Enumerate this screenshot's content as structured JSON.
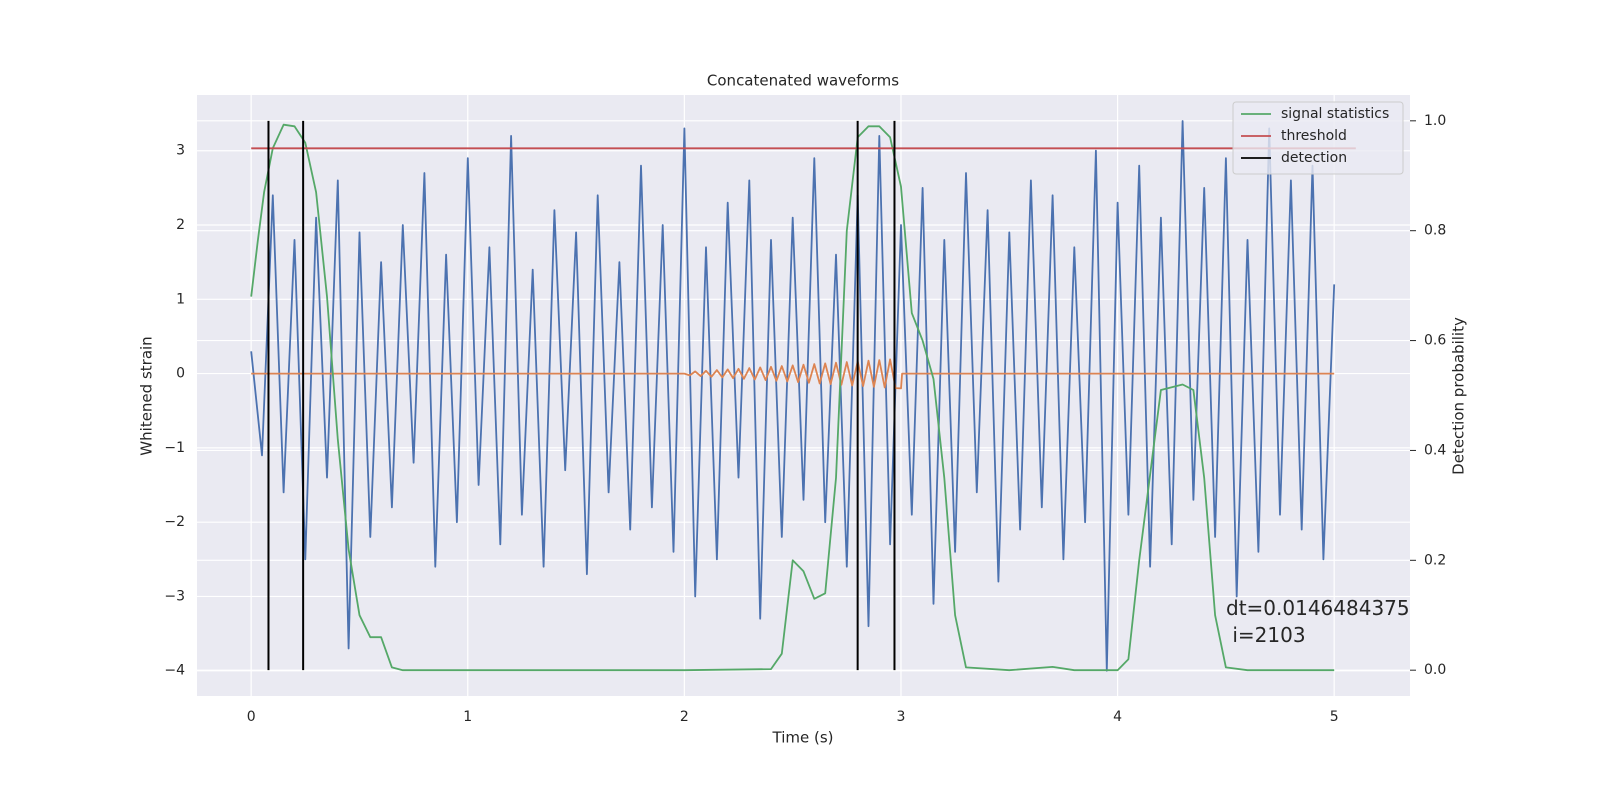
{
  "chart_data": {
    "type": "line",
    "title": "Concatenated waveforms",
    "x_label": "Time (s)",
    "y_label": "Whitened strain",
    "y2_label": "Detection probability",
    "annotation": [
      "dt=0.0146484375",
      " i=2103"
    ],
    "xlim": [
      -0.25,
      5.35
    ],
    "ylim": [
      -4.34,
      3.75
    ],
    "y2lim": [
      -0.047,
      1.047
    ],
    "xticks": [
      0,
      1,
      2,
      3,
      4,
      5
    ],
    "yticks": [
      {
        "value": -4,
        "label": "−4"
      },
      {
        "value": -3,
        "label": "−3"
      },
      {
        "value": -2,
        "label": "−2"
      },
      {
        "value": -1,
        "label": "−1"
      },
      0,
      1,
      2,
      3
    ],
    "y2ticks": [
      {
        "value": 0,
        "label": "0.0"
      },
      {
        "value": 0.2,
        "label": "0.2"
      },
      {
        "value": 0.4,
        "label": "0.4"
      },
      {
        "value": 0.6,
        "label": "0.6"
      },
      {
        "value": 0.8,
        "label": "0.8"
      },
      {
        "value": 1,
        "label": "1.0"
      }
    ],
    "grid": true,
    "legend": "upper right",
    "series": [
      {
        "color": "#4c72b0",
        "x": [
          0,
          0.05,
          0.1,
          0.15,
          0.2,
          0.25,
          0.3,
          0.35,
          0.4,
          0.45,
          0.5,
          0.55,
          0.6,
          0.65,
          0.7,
          0.75,
          0.8,
          0.85,
          0.9,
          0.95,
          1,
          1.05,
          1.1,
          1.15,
          1.2,
          1.25,
          1.3,
          1.35,
          1.4,
          1.45,
          1.5,
          1.55,
          1.6,
          1.65,
          1.7,
          1.75,
          1.8,
          1.85,
          1.9,
          1.95,
          2,
          2.05,
          2.1,
          2.15,
          2.2,
          2.25,
          2.3,
          2.35,
          2.4,
          2.45,
          2.5,
          2.55,
          2.6,
          2.65,
          2.7,
          2.75,
          2.8,
          2.85,
          2.9,
          2.95,
          3,
          3.05,
          3.1,
          3.15,
          3.2,
          3.25,
          3.3,
          3.35,
          3.4,
          3.45,
          3.5,
          3.55,
          3.6,
          3.65,
          3.7,
          3.75,
          3.8,
          3.85,
          3.9,
          3.95,
          4,
          4.05,
          4.1,
          4.15,
          4.2,
          4.25,
          4.3,
          4.35,
          4.4,
          4.45,
          4.5,
          4.55,
          4.6,
          4.65,
          4.7,
          4.75,
          4.8,
          4.85,
          4.9,
          4.95,
          5
        ],
        "values": [
          0.3,
          -1.1,
          2.4,
          -1.6,
          1.8,
          -2.5,
          2.1,
          -1.4,
          2.6,
          -3.7,
          1.9,
          -2.2,
          1.5,
          -1.8,
          2.0,
          -1.2,
          2.7,
          -2.6,
          1.6,
          -2.0,
          2.9,
          -1.5,
          1.7,
          -2.3,
          3.2,
          -1.9,
          1.4,
          -2.6,
          2.2,
          -1.3,
          1.9,
          -2.7,
          2.4,
          -1.6,
          1.5,
          -2.1,
          2.8,
          -1.8,
          2.0,
          -2.4,
          3.3,
          -3.0,
          1.7,
          -2.5,
          2.3,
          -1.4,
          2.6,
          -3.3,
          1.8,
          -2.2,
          2.1,
          -1.7,
          2.9,
          -2.0,
          1.6,
          -2.6,
          2.4,
          -3.4,
          3.2,
          -2.3,
          2.0,
          -1.9,
          2.5,
          -3.1,
          1.8,
          -2.4,
          2.7,
          -1.6,
          2.2,
          -2.8,
          1.9,
          -2.1,
          2.6,
          -1.8,
          2.4,
          -2.5,
          1.7,
          -2.0,
          3.0,
          -4.0,
          2.3,
          -1.9,
          2.8,
          -2.6,
          2.1,
          -2.3,
          3.4,
          -1.7,
          2.5,
          -2.2,
          2.9,
          -3.0,
          1.8,
          -2.4,
          3.3,
          -1.9,
          2.6,
          -2.1,
          2.8,
          -2.5,
          1.2
        ]
      },
      {
        "color": "#dd8452",
        "x": [
          0,
          2,
          2.025,
          2.05,
          2.075,
          2.1,
          2.125,
          2.15,
          2.175,
          2.2,
          2.225,
          2.25,
          2.275,
          2.3,
          2.325,
          2.35,
          2.375,
          2.4,
          2.425,
          2.45,
          2.475,
          2.5,
          2.525,
          2.55,
          2.575,
          2.6,
          2.625,
          2.65,
          2.675,
          2.7,
          2.725,
          2.75,
          2.775,
          2.8,
          2.825,
          2.85,
          2.875,
          2.9,
          2.925,
          2.95,
          2.975,
          3,
          3.005,
          5
        ],
        "values": [
          0,
          0,
          -0.025,
          0.03,
          -0.034,
          0.038,
          -0.043,
          0.047,
          -0.052,
          0.056,
          -0.061,
          0.065,
          -0.07,
          0.074,
          -0.079,
          0.083,
          -0.088,
          0.092,
          -0.097,
          0.101,
          -0.106,
          0.11,
          -0.115,
          0.119,
          -0.124,
          0.128,
          -0.133,
          0.137,
          -0.142,
          0.146,
          -0.151,
          0.155,
          -0.16,
          0.164,
          -0.169,
          0.173,
          -0.178,
          0.182,
          -0.187,
          0.191,
          -0.196,
          -0.2,
          0,
          0
        ]
      },
      {
        "name": "signal statistics",
        "color": "#55a868",
        "axis": "y2",
        "x": [
          0,
          0.03,
          0.06,
          0.1,
          0.15,
          0.2,
          0.25,
          0.3,
          0.35,
          0.4,
          0.45,
          0.5,
          0.55,
          0.6,
          0.65,
          0.7,
          1,
          2,
          2.4,
          2.45,
          2.5,
          2.55,
          2.6,
          2.65,
          2.7,
          2.75,
          2.8,
          2.85,
          2.9,
          2.95,
          3,
          3.05,
          3.1,
          3.15,
          3.2,
          3.25,
          3.3,
          3.5,
          3.7,
          3.8,
          4,
          4.05,
          4.1,
          4.2,
          4.3,
          4.35,
          4.4,
          4.45,
          4.5,
          4.6,
          5
        ],
        "values": [
          0.68,
          0.78,
          0.87,
          0.95,
          0.993,
          0.99,
          0.96,
          0.87,
          0.68,
          0.42,
          0.22,
          0.1,
          0.06,
          0.06,
          0.005,
          0,
          0,
          0,
          0.002,
          0.03,
          0.2,
          0.18,
          0.13,
          0.14,
          0.35,
          0.8,
          0.97,
          0.99,
          0.99,
          0.97,
          0.88,
          0.65,
          0.6,
          0.53,
          0.35,
          0.1,
          0.005,
          0,
          0.006,
          0,
          0,
          0.02,
          0.2,
          0.51,
          0.52,
          0.51,
          0.35,
          0.1,
          0.005,
          0,
          0
        ]
      },
      {
        "name": "threshold",
        "color": "#c44e52",
        "axis": "y2",
        "x": [
          0,
          5.1
        ],
        "values": [
          0.95,
          0.95
        ]
      },
      {
        "name": "detection",
        "color": "#000000",
        "axis": "y2",
        "kind": "vlines",
        "x": [
          0.08,
          0.24,
          2.8,
          2.97
        ],
        "ymin": 0,
        "ymax": 1
      }
    ]
  }
}
